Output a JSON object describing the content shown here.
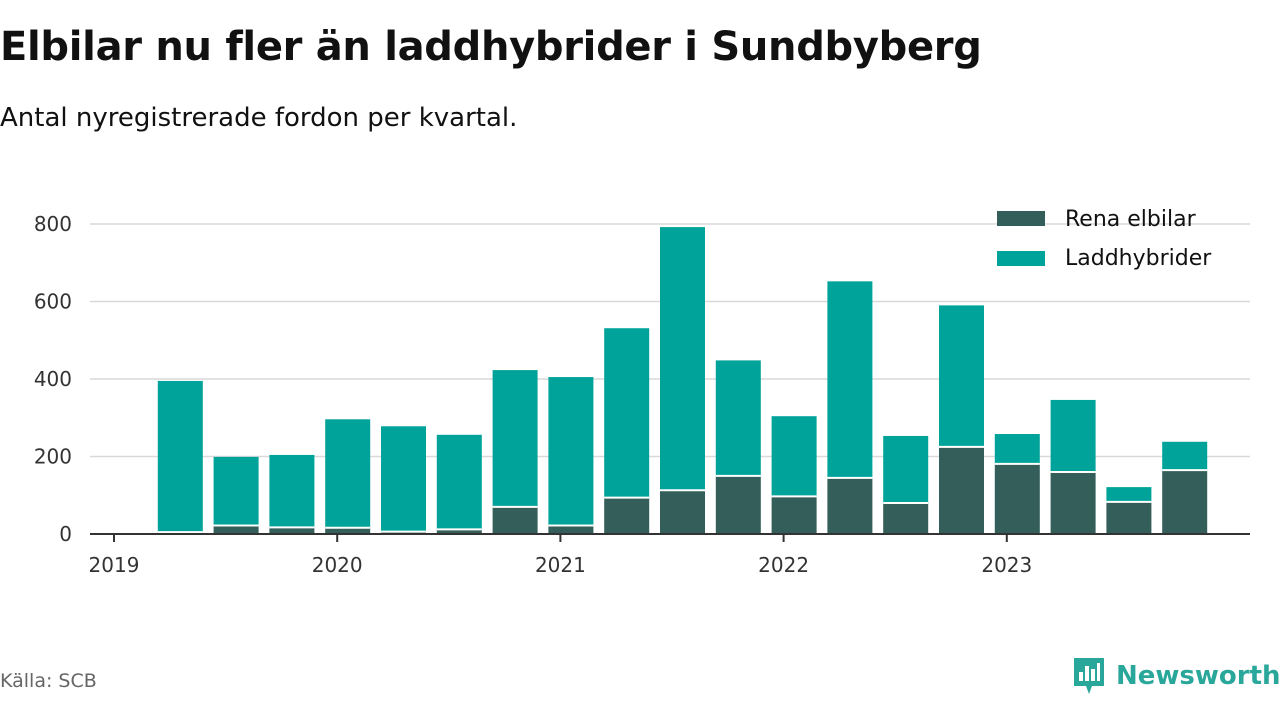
{
  "title": "Elbilar nu fler än laddhybrider i Sundbyberg",
  "subtitle": "Antal nyregistrerade fordon per kvartal.",
  "source": "Källa: SCB",
  "brand": {
    "name": "Newsworthy",
    "icon": "newsworthy-logo-icon"
  },
  "colors": {
    "elbilar": "#335e5a",
    "laddhybrider": "#00a39a",
    "grid": "#d9d9d9",
    "axis": "#333333",
    "brand": "#2aa79b"
  },
  "chart_data": {
    "type": "bar",
    "stacked": true,
    "title": "Elbilar nu fler än laddhybrider i Sundbyberg",
    "subtitle": "Antal nyregistrerade fordon per kvartal.",
    "xlabel": "",
    "ylabel": "",
    "ylim": [
      0,
      800
    ],
    "yticks": [
      0,
      200,
      400,
      600,
      800
    ],
    "grid": true,
    "legend_position": "top-right",
    "x_tick_labels": [
      "2019",
      "2020",
      "2021",
      "2022",
      "2023"
    ],
    "categories": [
      "2019 Q1",
      "2019 Q2",
      "2019 Q3",
      "2019 Q4",
      "2020 Q1",
      "2020 Q2",
      "2020 Q3",
      "2020 Q4",
      "2021 Q1",
      "2021 Q2",
      "2021 Q3",
      "2021 Q4",
      "2022 Q1",
      "2022 Q2",
      "2022 Q3",
      "2022 Q4",
      "2023 Q1",
      "2023 Q2",
      "2023 Q3",
      "2023 Q4"
    ],
    "series": [
      {
        "name": "Rena elbilar",
        "values": [
          null,
          5,
          22,
          17,
          16,
          6,
          12,
          70,
          22,
          94,
          113,
          150,
          97,
          145,
          80,
          225,
          181,
          160,
          83,
          165
        ]
      },
      {
        "name": "Laddhybrider",
        "values": [
          null,
          390,
          177,
          187,
          280,
          272,
          244,
          353,
          383,
          437,
          679,
          298,
          207,
          507,
          173,
          365,
          77,
          186,
          38,
          73
        ]
      }
    ]
  }
}
